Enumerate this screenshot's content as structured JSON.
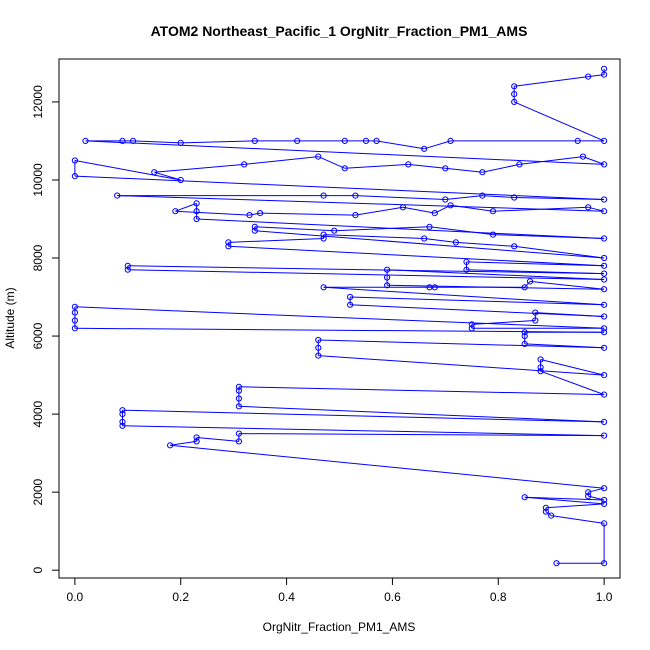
{
  "chart_data": {
    "type": "scatter",
    "title": "ATOM2 Northeast_Pacific_1 OrgNitr_Fraction_PM1_AMS",
    "xlabel": "OrgNitr_Fraction_PM1_AMS",
    "ylabel": "Altitude (m)",
    "xlim": [
      -0.03,
      1.03
    ],
    "ylim": [
      -200,
      13100
    ],
    "x_ticks": [
      0.0,
      0.2,
      0.4,
      0.6,
      0.8,
      1.0
    ],
    "x_tick_labels": [
      "0.0",
      "0.2",
      "0.4",
      "0.6",
      "0.8",
      "1.0"
    ],
    "y_ticks": [
      0,
      2000,
      4000,
      6000,
      8000,
      10000,
      12000
    ],
    "y_tick_labels": [
      "0",
      "2000",
      "4000",
      "6000",
      "8000",
      "10000",
      "12000"
    ],
    "grid": false,
    "legend": "none",
    "colors": {
      "series": "#0000ff",
      "axes": "#000000"
    },
    "series": [
      {
        "points": [
          [
            0.91,
            180
          ],
          [
            1.0,
            180
          ],
          [
            1.0,
            1200
          ],
          [
            0.9,
            1400
          ],
          [
            0.89,
            1500
          ],
          [
            0.89,
            1600
          ],
          [
            1.0,
            1700
          ],
          [
            0.85,
            1870
          ],
          [
            1.0,
            1800
          ],
          [
            0.97,
            1900
          ],
          [
            0.97,
            2000
          ],
          [
            1.0,
            2100
          ],
          [
            0.18,
            3200
          ],
          [
            0.23,
            3300
          ],
          [
            0.23,
            3400
          ],
          [
            0.31,
            3300
          ],
          [
            0.31,
            3500
          ],
          [
            1.0,
            3450
          ],
          [
            0.09,
            3700
          ],
          [
            0.09,
            3800
          ],
          [
            0.09,
            4000
          ],
          [
            0.09,
            4100
          ],
          [
            1.0,
            3800
          ],
          [
            0.31,
            4200
          ],
          [
            0.31,
            4400
          ],
          [
            0.31,
            4600
          ],
          [
            0.31,
            4700
          ],
          [
            1.0,
            4500
          ],
          [
            0.88,
            5100
          ],
          [
            0.88,
            5200
          ],
          [
            0.88,
            5400
          ],
          [
            1.0,
            5000
          ],
          [
            0.46,
            5500
          ],
          [
            0.46,
            5700
          ],
          [
            0.46,
            5900
          ],
          [
            1.0,
            5700
          ],
          [
            0.85,
            5800
          ],
          [
            0.85,
            6000
          ],
          [
            0.85,
            6100
          ],
          [
            1.0,
            6100
          ],
          [
            0.0,
            6200
          ],
          [
            0.0,
            6400
          ],
          [
            0.0,
            6600
          ],
          [
            0.0,
            6750
          ],
          [
            1.0,
            6200
          ],
          [
            0.75,
            6200
          ],
          [
            0.75,
            6300
          ],
          [
            0.87,
            6400
          ],
          [
            0.87,
            6600
          ],
          [
            1.0,
            6500
          ],
          [
            0.52,
            6800
          ],
          [
            0.52,
            7000
          ],
          [
            1.0,
            6800
          ],
          [
            0.47,
            7250
          ],
          [
            0.67,
            7250
          ],
          [
            0.68,
            7250
          ],
          [
            0.85,
            7250
          ],
          [
            0.86,
            7400
          ],
          [
            1.0,
            7200
          ],
          [
            0.59,
            7300
          ],
          [
            0.59,
            7500
          ],
          [
            0.59,
            7700
          ],
          [
            1.0,
            7450
          ],
          [
            0.1,
            7700
          ],
          [
            0.1,
            7800
          ],
          [
            1.0,
            7600
          ],
          [
            0.74,
            7700
          ],
          [
            0.74,
            7900
          ],
          [
            1.0,
            7800
          ],
          [
            0.29,
            8300
          ],
          [
            0.29,
            8400
          ],
          [
            0.47,
            8500
          ],
          [
            0.47,
            8600
          ],
          [
            0.66,
            8500
          ],
          [
            0.72,
            8400
          ],
          [
            0.83,
            8300
          ],
          [
            1.0,
            8000
          ],
          [
            0.34,
            8700
          ],
          [
            0.34,
            8800
          ],
          [
            0.49,
            8700
          ],
          [
            0.67,
            8800
          ],
          [
            0.79,
            8600
          ],
          [
            1.0,
            8500
          ],
          [
            0.23,
            9000
          ],
          [
            0.23,
            9200
          ],
          [
            0.23,
            9400
          ],
          [
            0.19,
            9200
          ],
          [
            0.33,
            9100
          ],
          [
            0.35,
            9150
          ],
          [
            0.53,
            9100
          ],
          [
            0.62,
            9300
          ],
          [
            0.68,
            9150
          ],
          [
            0.71,
            9350
          ],
          [
            0.79,
            9200
          ],
          [
            0.97,
            9300
          ],
          [
            1.0,
            9200
          ],
          [
            0.08,
            9600
          ],
          [
            0.47,
            9600
          ],
          [
            0.53,
            9600
          ],
          [
            0.7,
            9500
          ],
          [
            0.77,
            9600
          ],
          [
            0.83,
            9550
          ],
          [
            1.0,
            9500
          ],
          [
            0.0,
            10100
          ],
          [
            0.0,
            10500
          ],
          [
            0.2,
            10000
          ],
          [
            0.15,
            10200
          ],
          [
            0.32,
            10400
          ],
          [
            0.46,
            10600
          ],
          [
            0.51,
            10300
          ],
          [
            0.63,
            10400
          ],
          [
            0.7,
            10300
          ],
          [
            0.77,
            10200
          ],
          [
            0.84,
            10400
          ],
          [
            0.96,
            10600
          ],
          [
            1.0,
            10400
          ],
          [
            0.02,
            11000
          ],
          [
            0.09,
            11000
          ],
          [
            0.11,
            11000
          ],
          [
            0.2,
            10950
          ],
          [
            0.34,
            11000
          ],
          [
            0.42,
            11000
          ],
          [
            0.51,
            11000
          ],
          [
            0.55,
            11000
          ],
          [
            0.57,
            11000
          ],
          [
            0.66,
            10800
          ],
          [
            0.71,
            11000
          ],
          [
            0.95,
            11000
          ],
          [
            1.0,
            11000
          ],
          [
            0.83,
            12000
          ],
          [
            0.83,
            12200
          ],
          [
            0.83,
            12400
          ],
          [
            0.97,
            12650
          ],
          [
            1.0,
            12700
          ],
          [
            1.0,
            12850
          ]
        ]
      }
    ]
  }
}
